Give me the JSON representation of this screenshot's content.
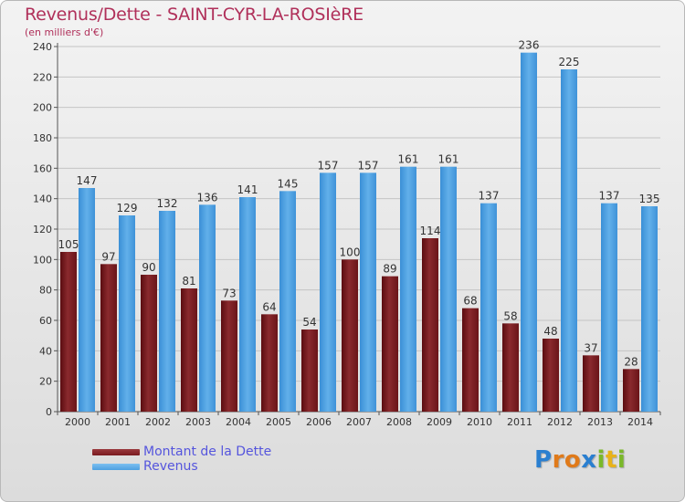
{
  "header": {
    "title": "Revenus/Dette - SAINT-CYR-LA-ROSIèRE",
    "subtitle": "(en milliers d'€)"
  },
  "colors": {
    "dette": "#7a1a1f",
    "revenus": "#4ea0e0",
    "title": "#b0305a",
    "legend_text": "#5555dd"
  },
  "legend": {
    "items": [
      {
        "label": "Montant de la Dette",
        "color": "#7a1a1f"
      },
      {
        "label": "Revenus",
        "color": "#4ea0e0"
      }
    ]
  },
  "logo": {
    "text": "Proxiti",
    "icon": "proxiti-logo"
  },
  "chart_data": {
    "type": "bar",
    "title": "Revenus/Dette - SAINT-CYR-LA-ROSIèRE",
    "subtitle": "(en milliers d'€)",
    "categories": [
      "2000",
      "2001",
      "2002",
      "2003",
      "2004",
      "2005",
      "2006",
      "2007",
      "2008",
      "2009",
      "2010",
      "2011",
      "2012",
      "2013",
      "2014"
    ],
    "series": [
      {
        "name": "Montant de la Dette",
        "values": [
          105,
          97,
          90,
          81,
          73,
          64,
          54,
          100,
          89,
          114,
          68,
          58,
          48,
          37,
          28
        ]
      },
      {
        "name": "Revenus",
        "values": [
          147,
          129,
          132,
          136,
          141,
          145,
          157,
          157,
          161,
          161,
          137,
          236,
          225,
          137,
          135
        ]
      }
    ],
    "ylim": [
      0,
      240
    ],
    "yticks": [
      0,
      20,
      40,
      60,
      80,
      100,
      120,
      140,
      160,
      180,
      200,
      220,
      240
    ],
    "xlabel": "",
    "ylabel": "",
    "grid": true,
    "legend_position": "bottom-left"
  }
}
